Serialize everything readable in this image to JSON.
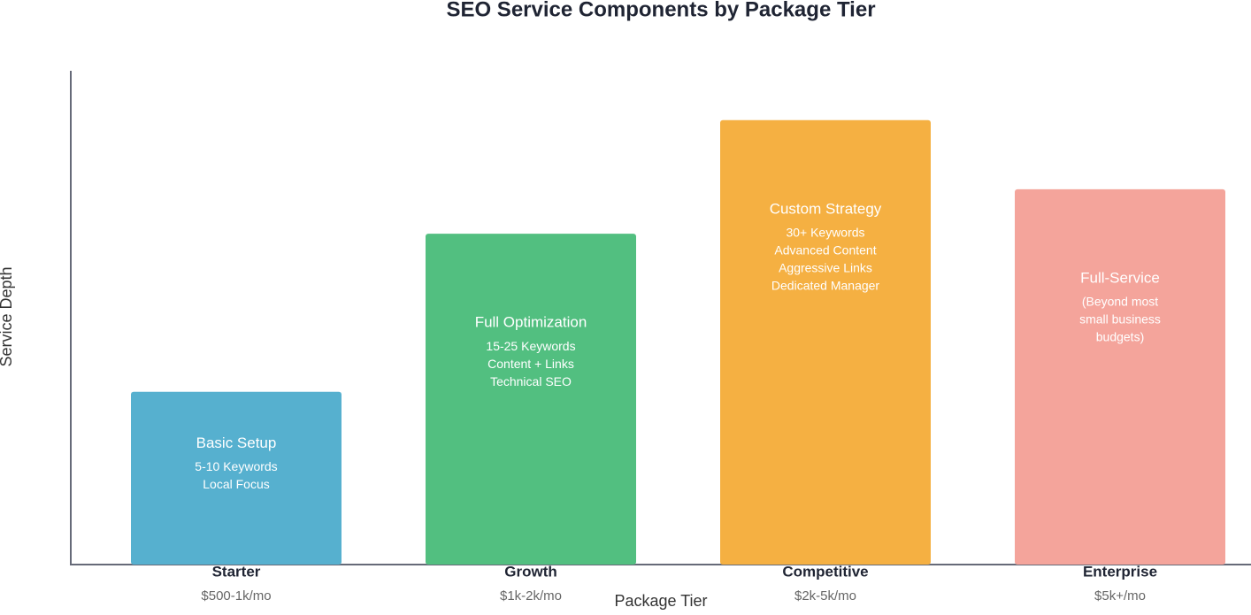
{
  "chart_data": {
    "type": "bar",
    "title": "SEO Service Components by Package Tier",
    "x_label": "Package Tier",
    "y_label": "Service Depth",
    "categories": [
      "Starter",
      "Growth",
      "Competitive",
      "Enterprise"
    ],
    "category_sublabels": [
      "$500-1k/mo",
      "$1k-2k/mo",
      "$2k-5k/mo",
      "$5k+/mo"
    ],
    "values": [
      35,
      67,
      90,
      76
    ],
    "colors": [
      "#56b0cf",
      "#52bf80",
      "#f5b042",
      "#f4a49b"
    ],
    "bar_labels": [
      {
        "title": "Basic Setup",
        "lines": [
          "5-10 Keywords",
          "Local Focus"
        ]
      },
      {
        "title": "Full Optimization",
        "lines": [
          "15-25 Keywords",
          "Content + Links",
          "Technical SEO"
        ]
      },
      {
        "title": "Custom Strategy",
        "lines": [
          "30+ Keywords",
          "Advanced Content",
          "Aggressive Links",
          "Dedicated Manager"
        ]
      },
      {
        "title": "Full-Service",
        "lines": [
          "(Beyond most",
          "small business",
          "budgets)"
        ]
      }
    ],
    "ylim": [
      0,
      100
    ]
  }
}
